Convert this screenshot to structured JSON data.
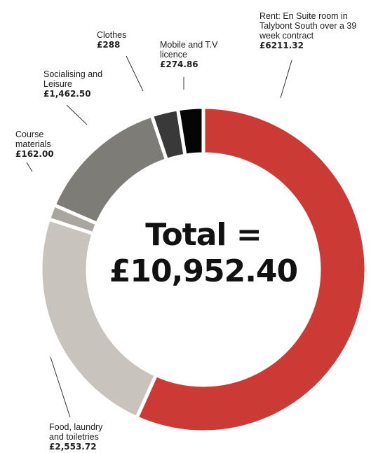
{
  "chart_data": {
    "type": "pie",
    "donut": true,
    "categories": [
      "Rent: En Suite room in Talybont South over a 39 week contract",
      "Food, laundry and toiletries",
      "Course materials",
      "Socialising and Leisure",
      "Clothes",
      "Mobile and T.V licence"
    ],
    "values": [
      6211.32,
      2553.72,
      162.0,
      1462.5,
      288,
      274.86
    ],
    "value_labels": [
      "£6211.32",
      "£2,553.72",
      "£162.00",
      "£1,462.50",
      "£288",
      "£274.86"
    ],
    "colors": [
      "#cc3a35",
      "#c8c3bc",
      "#a9a59f",
      "#7e7c77",
      "#393939",
      "#050505"
    ],
    "annotations": [
      "Total =",
      "£10,952.40"
    ]
  }
}
